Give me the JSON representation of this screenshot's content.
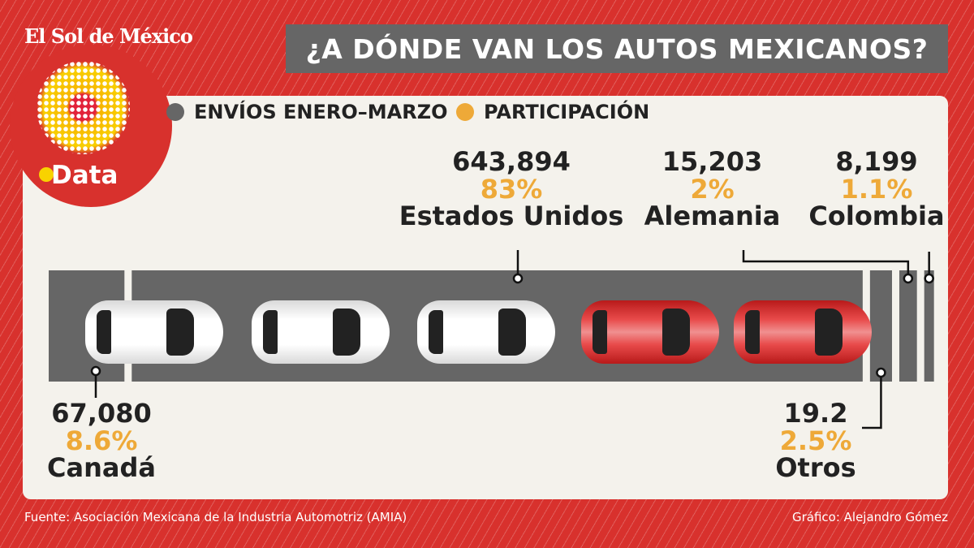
{
  "brand": "El Sol de México",
  "logo": "Data",
  "title": "¿A DÓNDE VAN LOS AUTOS MEXICANOS?",
  "legend": {
    "shipments": "ENVÍOS ENERO–MARZO",
    "share": "PARTICIPACIÓN"
  },
  "colors": {
    "shipments": "#666666",
    "share": "#eea938",
    "car_white": "#ffffff",
    "car_red": "#d8312d",
    "background": "#d8312d"
  },
  "chart_data": {
    "type": "bar",
    "orientation": "horizontal-stacked",
    "categories": [
      "Canadá",
      "Estados Unidos",
      "Otros",
      "Alemania",
      "Colombia"
    ],
    "series": [
      {
        "name": "ENVÍOS ENERO–MARZO",
        "values": [
          "67,080",
          "643,894",
          "19.2",
          "15,203",
          "8,199"
        ]
      },
      {
        "name": "PARTICIPACIÓN",
        "values": [
          "8.6%",
          "83%",
          "2.5%",
          "2%",
          "1.1%"
        ]
      }
    ],
    "shares": [
      8.6,
      83,
      2.5,
      2,
      1.1
    ]
  },
  "labels": [
    {
      "value": "67,080",
      "share": "8.6%",
      "name": "Canadá"
    },
    {
      "value": "643,894",
      "share": "83%",
      "name": "Estados Unidos"
    },
    {
      "value": "19.2",
      "share": "2.5%",
      "name": "Otros"
    },
    {
      "value": "15,203",
      "share": "2%",
      "name": "Alemania"
    },
    {
      "value": "8,199",
      "share": "1.1%",
      "name": "Colombia"
    }
  ],
  "footer": {
    "source": "Fuente: Asociación Mexicana de la Industria Automotriz (AMIA)",
    "credit": "Gráfico: Alejandro Gómez"
  }
}
